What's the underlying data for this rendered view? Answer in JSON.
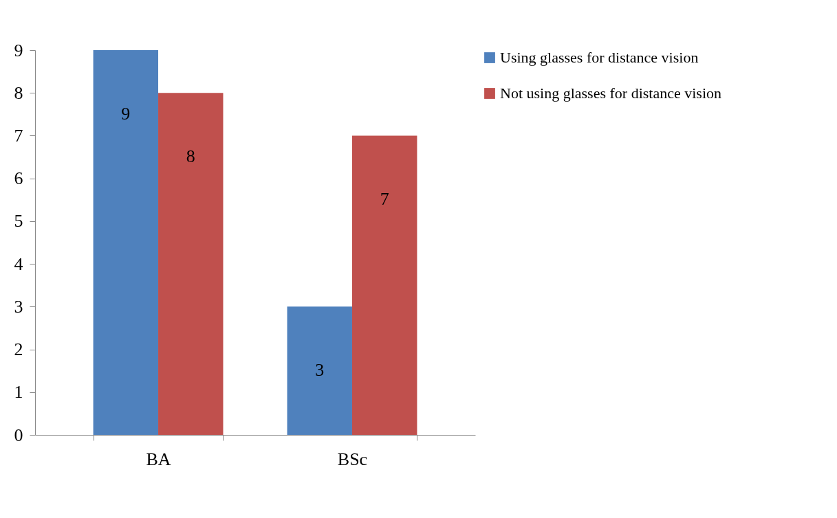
{
  "chart_data": {
    "type": "bar",
    "categories": [
      "BA",
      "BSc"
    ],
    "series": [
      {
        "name": "Using glasses for distance vision",
        "color": "#4f81bd",
        "values": [
          9,
          3
        ]
      },
      {
        "name": "Not using glasses for distance vision",
        "color": "#c0504d",
        "values": [
          8,
          7
        ]
      }
    ],
    "ylim": [
      0,
      9
    ],
    "yticks": [
      0,
      1,
      2,
      3,
      4,
      5,
      6,
      7,
      8,
      9
    ],
    "grid": false,
    "legend": "right",
    "data_labels": true
  }
}
